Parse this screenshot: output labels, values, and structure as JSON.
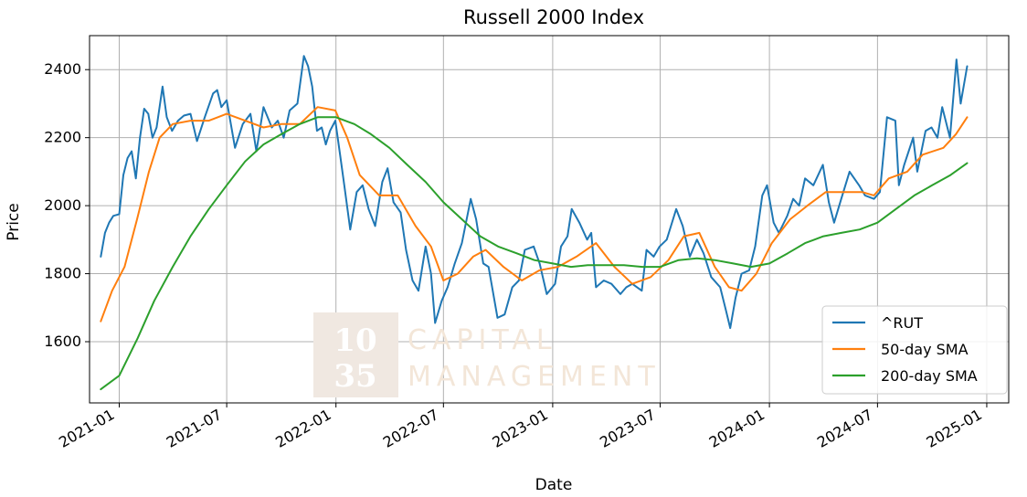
{
  "chart_data": {
    "type": "line",
    "title": "Russell 2000 Index",
    "xlabel": "Date",
    "ylabel": "Price",
    "ylim": [
      1420,
      2500
    ],
    "yticks": [
      1600,
      1800,
      2000,
      2200,
      2400
    ],
    "xlim": [
      "2020-11-12",
      "2025-02-07"
    ],
    "xticks": [
      "2021-01",
      "2021-07",
      "2022-01",
      "2022-07",
      "2023-01",
      "2023-07",
      "2024-01",
      "2024-07",
      "2025-01"
    ],
    "grid": true,
    "legend_position": "lower-right",
    "series": [
      {
        "name": "^RUT",
        "color": "#1f77b4",
        "points": [
          [
            "2020-12-01",
            1850
          ],
          [
            "2020-12-08",
            1920
          ],
          [
            "2020-12-15",
            1950
          ],
          [
            "2020-12-22",
            1970
          ],
          [
            "2021-01-01",
            1975
          ],
          [
            "2021-01-08",
            2090
          ],
          [
            "2021-01-15",
            2140
          ],
          [
            "2021-01-22",
            2160
          ],
          [
            "2021-01-29",
            2080
          ],
          [
            "2021-02-05",
            2200
          ],
          [
            "2021-02-12",
            2285
          ],
          [
            "2021-02-19",
            2270
          ],
          [
            "2021-02-26",
            2200
          ],
          [
            "2021-03-05",
            2230
          ],
          [
            "2021-03-15",
            2350
          ],
          [
            "2021-03-22",
            2260
          ],
          [
            "2021-03-31",
            2220
          ],
          [
            "2021-04-10",
            2250
          ],
          [
            "2021-04-20",
            2265
          ],
          [
            "2021-05-01",
            2270
          ],
          [
            "2021-05-12",
            2190
          ],
          [
            "2021-05-25",
            2260
          ],
          [
            "2021-06-08",
            2330
          ],
          [
            "2021-06-15",
            2340
          ],
          [
            "2021-06-22",
            2290
          ],
          [
            "2021-07-01",
            2310
          ],
          [
            "2021-07-15",
            2170
          ],
          [
            "2021-07-28",
            2240
          ],
          [
            "2021-08-10",
            2270
          ],
          [
            "2021-08-20",
            2160
          ],
          [
            "2021-09-01",
            2290
          ],
          [
            "2021-09-15",
            2230
          ],
          [
            "2021-09-25",
            2250
          ],
          [
            "2021-10-05",
            2200
          ],
          [
            "2021-10-15",
            2280
          ],
          [
            "2021-10-28",
            2300
          ],
          [
            "2021-11-08",
            2440
          ],
          [
            "2021-11-15",
            2410
          ],
          [
            "2021-11-22",
            2350
          ],
          [
            "2021-11-30",
            2220
          ],
          [
            "2021-12-08",
            2230
          ],
          [
            "2021-12-15",
            2180
          ],
          [
            "2021-12-22",
            2220
          ],
          [
            "2021-12-31",
            2250
          ],
          [
            "2022-01-08",
            2150
          ],
          [
            "2022-01-15",
            2060
          ],
          [
            "2022-01-25",
            1930
          ],
          [
            "2022-02-05",
            2040
          ],
          [
            "2022-02-15",
            2060
          ],
          [
            "2022-02-25",
            1990
          ],
          [
            "2022-03-08",
            1940
          ],
          [
            "2022-03-20",
            2070
          ],
          [
            "2022-03-29",
            2110
          ],
          [
            "2022-04-08",
            2010
          ],
          [
            "2022-04-20",
            1980
          ],
          [
            "2022-04-29",
            1870
          ],
          [
            "2022-05-10",
            1780
          ],
          [
            "2022-05-20",
            1750
          ],
          [
            "2022-06-01",
            1880
          ],
          [
            "2022-06-10",
            1800
          ],
          [
            "2022-06-17",
            1655
          ],
          [
            "2022-06-28",
            1720
          ],
          [
            "2022-07-08",
            1760
          ],
          [
            "2022-07-20",
            1830
          ],
          [
            "2022-08-01",
            1890
          ],
          [
            "2022-08-16",
            2020
          ],
          [
            "2022-08-25",
            1960
          ],
          [
            "2022-09-06",
            1830
          ],
          [
            "2022-09-15",
            1820
          ],
          [
            "2022-09-30",
            1670
          ],
          [
            "2022-10-12",
            1680
          ],
          [
            "2022-10-25",
            1760
          ],
          [
            "2022-11-05",
            1780
          ],
          [
            "2022-11-15",
            1870
          ],
          [
            "2022-11-30",
            1880
          ],
          [
            "2022-12-10",
            1830
          ],
          [
            "2022-12-22",
            1740
          ],
          [
            "2023-01-05",
            1770
          ],
          [
            "2023-01-15",
            1880
          ],
          [
            "2023-01-26",
            1910
          ],
          [
            "2023-02-02",
            1990
          ],
          [
            "2023-02-15",
            1950
          ],
          [
            "2023-02-28",
            1900
          ],
          [
            "2023-03-07",
            1920
          ],
          [
            "2023-03-15",
            1760
          ],
          [
            "2023-03-28",
            1780
          ],
          [
            "2023-04-10",
            1770
          ],
          [
            "2023-04-25",
            1740
          ],
          [
            "2023-05-05",
            1760
          ],
          [
            "2023-05-15",
            1770
          ],
          [
            "2023-05-31",
            1750
          ],
          [
            "2023-06-08",
            1870
          ],
          [
            "2023-06-20",
            1850
          ],
          [
            "2023-06-30",
            1880
          ],
          [
            "2023-07-12",
            1900
          ],
          [
            "2023-07-28",
            1990
          ],
          [
            "2023-08-08",
            1940
          ],
          [
            "2023-08-20",
            1850
          ],
          [
            "2023-09-01",
            1900
          ],
          [
            "2023-09-12",
            1860
          ],
          [
            "2023-09-25",
            1790
          ],
          [
            "2023-10-10",
            1760
          ],
          [
            "2023-10-20",
            1690
          ],
          [
            "2023-10-27",
            1640
          ],
          [
            "2023-11-05",
            1730
          ],
          [
            "2023-11-15",
            1800
          ],
          [
            "2023-11-28",
            1810
          ],
          [
            "2023-12-08",
            1880
          ],
          [
            "2023-12-20",
            2030
          ],
          [
            "2023-12-28",
            2060
          ],
          [
            "2024-01-08",
            1950
          ],
          [
            "2024-01-17",
            1920
          ],
          [
            "2024-01-31",
            1970
          ],
          [
            "2024-02-10",
            2020
          ],
          [
            "2024-02-20",
            2000
          ],
          [
            "2024-03-01",
            2080
          ],
          [
            "2024-03-15",
            2060
          ],
          [
            "2024-03-31",
            2120
          ],
          [
            "2024-04-10",
            2010
          ],
          [
            "2024-04-19",
            1950
          ],
          [
            "2024-05-01",
            2020
          ],
          [
            "2024-05-15",
            2100
          ],
          [
            "2024-05-31",
            2060
          ],
          [
            "2024-06-10",
            2030
          ],
          [
            "2024-06-25",
            2020
          ],
          [
            "2024-07-05",
            2040
          ],
          [
            "2024-07-17",
            2260
          ],
          [
            "2024-07-31",
            2250
          ],
          [
            "2024-08-06",
            2060
          ],
          [
            "2024-08-15",
            2120
          ],
          [
            "2024-08-30",
            2200
          ],
          [
            "2024-09-06",
            2100
          ],
          [
            "2024-09-20",
            2220
          ],
          [
            "2024-09-30",
            2230
          ],
          [
            "2024-10-10",
            2200
          ],
          [
            "2024-10-18",
            2290
          ],
          [
            "2024-10-31",
            2200
          ],
          [
            "2024-11-11",
            2430
          ],
          [
            "2024-11-18",
            2300
          ],
          [
            "2024-11-29",
            2410
          ]
        ]
      },
      {
        "name": "50-day SMA",
        "color": "#ff7f0e",
        "points": [
          [
            "2020-12-01",
            1660
          ],
          [
            "2020-12-20",
            1750
          ],
          [
            "2021-01-10",
            1820
          ],
          [
            "2021-01-31",
            1960
          ],
          [
            "2021-02-20",
            2100
          ],
          [
            "2021-03-10",
            2200
          ],
          [
            "2021-04-01",
            2240
          ],
          [
            "2021-05-01",
            2250
          ],
          [
            "2021-06-01",
            2250
          ],
          [
            "2021-07-01",
            2270
          ],
          [
            "2021-08-01",
            2250
          ],
          [
            "2021-09-01",
            2230
          ],
          [
            "2021-10-01",
            2240
          ],
          [
            "2021-11-01",
            2240
          ],
          [
            "2021-12-01",
            2290
          ],
          [
            "2021-12-31",
            2280
          ],
          [
            "2022-01-20",
            2200
          ],
          [
            "2022-02-10",
            2090
          ],
          [
            "2022-03-15",
            2030
          ],
          [
            "2022-04-15",
            2030
          ],
          [
            "2022-05-15",
            1940
          ],
          [
            "2022-06-10",
            1880
          ],
          [
            "2022-07-01",
            1780
          ],
          [
            "2022-07-25",
            1800
          ],
          [
            "2022-08-20",
            1850
          ],
          [
            "2022-09-10",
            1870
          ],
          [
            "2022-10-10",
            1820
          ],
          [
            "2022-11-10",
            1780
          ],
          [
            "2022-12-10",
            1810
          ],
          [
            "2023-01-10",
            1820
          ],
          [
            "2023-02-10",
            1850
          ],
          [
            "2023-03-15",
            1890
          ],
          [
            "2023-04-15",
            1820
          ],
          [
            "2023-05-15",
            1770
          ],
          [
            "2023-06-15",
            1790
          ],
          [
            "2023-07-15",
            1840
          ],
          [
            "2023-08-10",
            1910
          ],
          [
            "2023-09-05",
            1920
          ],
          [
            "2023-10-01",
            1820
          ],
          [
            "2023-10-25",
            1760
          ],
          [
            "2023-11-15",
            1750
          ],
          [
            "2023-12-10",
            1800
          ],
          [
            "2024-01-05",
            1890
          ],
          [
            "2024-02-05",
            1960
          ],
          [
            "2024-03-05",
            2000
          ],
          [
            "2024-04-05",
            2040
          ],
          [
            "2024-05-05",
            2040
          ],
          [
            "2024-06-05",
            2040
          ],
          [
            "2024-06-25",
            2030
          ],
          [
            "2024-07-20",
            2080
          ],
          [
            "2024-08-20",
            2100
          ],
          [
            "2024-09-15",
            2150
          ],
          [
            "2024-10-20",
            2170
          ],
          [
            "2024-11-10",
            2210
          ],
          [
            "2024-11-29",
            2260
          ]
        ]
      },
      {
        "name": "200-day SMA",
        "color": "#2ca02c",
        "points": [
          [
            "2020-12-01",
            1460
          ],
          [
            "2021-01-01",
            1500
          ],
          [
            "2021-02-01",
            1610
          ],
          [
            "2021-03-01",
            1720
          ],
          [
            "2021-04-01",
            1820
          ],
          [
            "2021-05-01",
            1910
          ],
          [
            "2021-06-01",
            1990
          ],
          [
            "2021-07-01",
            2060
          ],
          [
            "2021-08-01",
            2130
          ],
          [
            "2021-09-01",
            2180
          ],
          [
            "2021-10-01",
            2210
          ],
          [
            "2021-11-01",
            2240
          ],
          [
            "2021-12-01",
            2260
          ],
          [
            "2022-01-01",
            2260
          ],
          [
            "2022-02-01",
            2240
          ],
          [
            "2022-03-01",
            2210
          ],
          [
            "2022-04-01",
            2170
          ],
          [
            "2022-05-01",
            2120
          ],
          [
            "2022-06-01",
            2070
          ],
          [
            "2022-07-01",
            2010
          ],
          [
            "2022-08-01",
            1960
          ],
          [
            "2022-09-01",
            1910
          ],
          [
            "2022-10-01",
            1880
          ],
          [
            "2022-11-01",
            1860
          ],
          [
            "2022-12-01",
            1840
          ],
          [
            "2023-01-01",
            1830
          ],
          [
            "2023-02-01",
            1820
          ],
          [
            "2023-03-01",
            1825
          ],
          [
            "2023-04-01",
            1825
          ],
          [
            "2023-05-01",
            1825
          ],
          [
            "2023-06-01",
            1820
          ],
          [
            "2023-07-01",
            1820
          ],
          [
            "2023-08-01",
            1840
          ],
          [
            "2023-09-01",
            1845
          ],
          [
            "2023-10-01",
            1840
          ],
          [
            "2023-11-01",
            1830
          ],
          [
            "2023-12-01",
            1820
          ],
          [
            "2024-01-01",
            1830
          ],
          [
            "2024-02-01",
            1860
          ],
          [
            "2024-03-01",
            1890
          ],
          [
            "2024-04-01",
            1910
          ],
          [
            "2024-05-01",
            1920
          ],
          [
            "2024-06-01",
            1930
          ],
          [
            "2024-07-01",
            1950
          ],
          [
            "2024-08-01",
            1990
          ],
          [
            "2024-09-01",
            2030
          ],
          [
            "2024-10-01",
            2060
          ],
          [
            "2024-11-01",
            2090
          ],
          [
            "2024-11-29",
            2125
          ]
        ]
      }
    ]
  },
  "watermark": {
    "line1": "10",
    "line2": "35",
    "text1": "CAPITAL",
    "text2": "MANAGEMENT"
  }
}
